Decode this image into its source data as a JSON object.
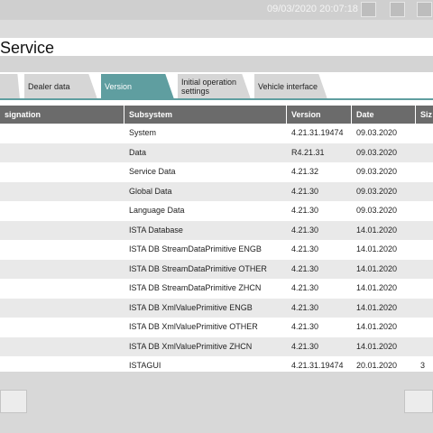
{
  "header": {
    "datetime": "09/03/2020 20:07:18",
    "title": "Service"
  },
  "tabs": [
    "Dealer data",
    "Version",
    "Initial operation settings",
    "Vehicle interface"
  ],
  "active_tab": 1,
  "table": {
    "columns": [
      "signation",
      "Subsystem",
      "Version",
      "Date",
      "Siz"
    ],
    "rows": [
      [
        "System",
        "4.21.31.19474",
        "09.03.2020"
      ],
      [
        "Data",
        "R4.21.31",
        "09.03.2020"
      ],
      [
        "Service Data",
        "4.21.32",
        "09.03.2020"
      ],
      [
        "Global Data",
        "4.21.30",
        "09.03.2020"
      ],
      [
        "Language Data",
        "4.21.30",
        "09.03.2020"
      ],
      [
        "ISTA Database",
        "4.21.30",
        "14.01.2020"
      ],
      [
        "ISTA DB StreamDataPrimitive ENGB",
        "4.21.30",
        "14.01.2020"
      ],
      [
        "ISTA DB StreamDataPrimitive OTHER",
        "4.21.30",
        "14.01.2020"
      ],
      [
        "ISTA DB StreamDataPrimitive ZHCN",
        "4.21.30",
        "14.01.2020"
      ],
      [
        "ISTA DB XmlValuePrimitive ENGB",
        "4.21.30",
        "14.01.2020"
      ],
      [
        "ISTA DB XmlValuePrimitive OTHER",
        "4.21.30",
        "14.01.2020"
      ],
      [
        "ISTA DB XmlValuePrimitive ZHCN",
        "4.21.30",
        "14.01.2020"
      ],
      [
        "ISTAGUI",
        "4.21.31.19474",
        "20.01.2020",
        "3"
      ]
    ]
  }
}
